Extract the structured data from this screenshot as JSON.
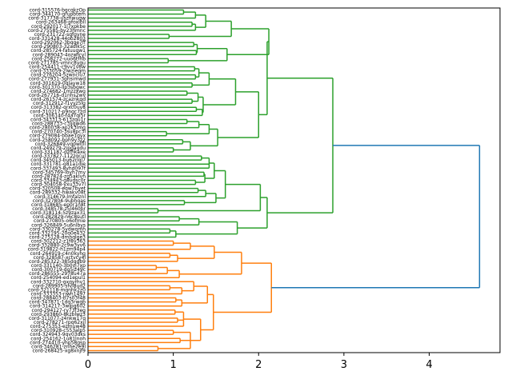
{
  "chart_data": {
    "type": "dendrogram",
    "orientation": "right",
    "xlabel": "",
    "ylabel": "",
    "xlim": [
      0,
      4.83
    ],
    "xticks": [
      0,
      1,
      2,
      3,
      4
    ],
    "colors": {
      "above_threshold": "#1f77b4",
      "cluster1": "#2ca02c",
      "cluster2": "#ff7f0e"
    },
    "leaves": [
      "cord-315576-bgcqkzOp",
      "cord-344170-grupbtem",
      "cord-317738-uszhwuqw",
      "cord-263468-pfoxlbll",
      "cord-292017-1l7xpkbe",
      "cord-275585-by23hmnc",
      "cord-231722-sqfgvne",
      "cord-331428-44ob2803",
      "cord-292062-3bqqe7ff",
      "cord-290803-32adlk5c",
      "cord-285724-fatuugw1",
      "cord-289043-4ozwfcyl",
      "cord-258272-uuo6tfhb",
      "cord-271785-vmnc8yqu",
      "cord-254411-c9vv1v8w",
      "cord-333059-2lwzieqm",
      "cord-276204-5zwnclu7",
      "cord-277931-3ghsimwd",
      "cord-301619-0qlayw18",
      "cord-301370-llp3sbgwc",
      "cord-274682-1mzzxwg",
      "cord-267716-d1nhs2wv",
      "cord-261574-zcaznkqd",
      "cord-312912-f1yyz5lg",
      "cord-313382-qrxc0uy8",
      "cord-310217-p9ngc7zd",
      "cord-306140-f4a7ql5r",
      "cord-343313-613zqu1r",
      "cord-288733-c3ljqwd6",
      "cord-280038-ap2k3lmg",
      "cord-270740-3su8pc3l",
      "cord-279084-bbae1gyx",
      "cord-258092-bph9y3z2",
      "cord-326849-vqpwlfll",
      "cord-249279-2ipgagdu",
      "cord-331187-dzfhkaxe",
      "cord-337827-112zqcul",
      "cord-345013-bu62nql7",
      "cord-331781-g81a1dje",
      "cord-337493-8yhd097f",
      "cord-345769-loyh7my",
      "cord-287824-zg5aklvn",
      "cord-334943-g8vdsc0r",
      "cord-304058-yxu33v7l",
      "cord-320508-eqw7byet",
      "cord-289332-hwakv08t",
      "cord-314679-lmfalznl",
      "cord-327804-9ubhqas",
      "cord-318685-ep0r1n8t",
      "cord-348578-z5l460br",
      "cord-318114-5z9zax31",
      "cord-282829-n6c8sutl",
      "cord-270805-o6ofmie",
      "cord-326849-5u6nlbys",
      "cord-330278-5ydwqmh",
      "cord-332195-20o0e432",
      "cord-275128-dmhqlge3",
      "cord-302212-z1f8v363",
      "cord-332880-2c9w3yv6",
      "cord-319822-h1zm94p4",
      "cord-264919-c4n0kyhg",
      "cord-328587-xctvcy4l",
      "cord-285322-385dgdb9",
      "cord-331140-3b0vj7xp",
      "cord-300719-dg5jz49c",
      "cord-286555-2978u47a",
      "cord-254094-ed1epul1",
      "cord-332710-gxqyrhv1",
      "cord-289905-sfvl8ud2",
      "cord-321118-mqnhk2z0",
      "cord-333353-rjwh1497",
      "cord-288403-b7s03f48",
      "cord-347871-1dq3rwqb",
      "cord-314217-3wlpg602",
      "cord-294127-ry73f3eg",
      "cord-293860-8kzblwz3",
      "cord-311077-z4nkw17q",
      "cord-278271-rpq62xjl",
      "cord-275353-ezmuw48",
      "cord-310928-c553alp5",
      "cord-324943-9qv03dks",
      "cord-254162-1u81lnoh",
      "cord-274410-yhp58gsp",
      "cord-346281-znhe2e9l",
      "cord-268425-xg8xnjf9"
    ],
    "tree": {
      "h": 4.59,
      "c": "#1f77b4",
      "k": [
        {
          "h": 2.87,
          "c": "#2ca02c",
          "k": [
            {
              "h": 2.1,
              "c": "#2ca02c",
              "k": [
                {
                  "h": 2.12,
                  "c": "#2ca02c",
                  "k": [
                    {
                      "h": 1.68,
                      "c": "#2ca02c",
                      "k": [
                        {
                          "h": 1.38,
                          "c": "#2ca02c",
                          "k": [
                            {
                              "h": 1.26,
                              "c": "#2ca02c",
                              "k": [
                                {
                                  "h": 1.12,
                                  "k": [
                                    0,
                                    1
                                  ]
                                },
                                2
                              ]
                            },
                            {
                              "h": 1.26,
                              "c": "#2ca02c",
                              "k": [
                                {
                                  "h": 1.22,
                                  "k": [
                                    3,
                                    4
                                  ]
                                },
                                5
                              ]
                            }
                          ]
                        },
                        {
                          "h": 0.95,
                          "k": [
                            6,
                            7
                          ]
                        }
                      ]
                    },
                    {
                      "h": 1.63,
                      "c": "#2ca02c",
                      "k": [
                        {
                          "h": 1.28,
                          "c": "#2ca02c",
                          "k": [
                            {
                              "h": 1.24,
                              "k": [
                                8,
                                9
                              ]
                            },
                            {
                              "h": 1.27,
                              "k": [
                                10,
                                11
                              ]
                            }
                          ]
                        },
                        {
                          "h": 0.94,
                          "k": [
                            12,
                            13
                          ]
                        }
                      ]
                    }
                  ]
                },
                {
                  "h": 2.0,
                  "c": "#2ca02c",
                  "k": [
                    {
                      "h": 1.73,
                      "c": "#2ca02c",
                      "k": [
                        {
                          "h": 1.42,
                          "c": "#2ca02c",
                          "k": [
                            {
                              "h": 1.3,
                              "c": "#2ca02c",
                              "k": [
                                {
                                  "h": 1.25,
                                  "k": [
                                    14,
                                    15
                                  ]
                                },
                                {
                                  "h": 1.26,
                                  "k": [
                                    16,
                                    17
                                  ]
                                }
                              ]
                            },
                            {
                              "h": 1.22,
                              "k": [
                                18,
                                19
                              ]
                            }
                          ]
                        },
                        {
                          "h": 1.35,
                          "c": "#2ca02c",
                          "k": [
                            {
                              "h": 1.29,
                              "c": "#2ca02c",
                              "k": [
                                {
                                  "h": 1.16,
                                  "k": [
                                    20,
                                    21
                                  ]
                                },
                                {
                                  "h": 1.22,
                                  "k": [
                                    22,
                                    23
                                  ]
                                }
                              ]
                            },
                            {
                              "h": 1.34,
                              "c": "#2ca02c",
                              "k": [
                                {
                                  "h": 1.27,
                                  "k": [
                                    24,
                                    25
                                  ]
                                },
                                26
                              ]
                            }
                          ]
                        }
                      ]
                    },
                    {
                      "h": 1.52,
                      "c": "#2ca02c",
                      "k": [
                        {
                          "h": 1.42,
                          "c": "#2ca02c",
                          "k": [
                            {
                              "h": 1.3,
                              "c": "#2ca02c",
                              "k": [
                                {
                                  "h": 1.16,
                                  "k": [
                                    27,
                                    28
                                  ]
                                },
                                29
                              ]
                            },
                            {
                              "h": 0.92,
                              "k": [
                                30,
                                31
                              ]
                            }
                          ]
                        },
                        {
                          "h": 1.2,
                          "c": "#2ca02c",
                          "k": [
                            {
                              "h": 1.11,
                              "k": [
                                32,
                                33
                              ]
                            },
                            {
                              "h": 1.0,
                              "k": [
                                34,
                                35
                              ]
                            }
                          ]
                        }
                      ]
                    }
                  ]
                }
              ]
            },
            {
              "h": 2.1,
              "c": "#2ca02c",
              "k": [
                {
                  "h": 2.02,
                  "c": "#2ca02c",
                  "k": [
                    {
                      "h": 1.61,
                      "c": "#2ca02c",
                      "k": [
                        {
                          "h": 1.48,
                          "c": "#2ca02c",
                          "k": [
                            {
                              "h": 1.42,
                              "c": "#2ca02c",
                              "k": [
                                {
                                  "h": 1.33,
                                  "k": [
                                    36,
                                    37
                                  ]
                                },
                                38,
                                39
                              ]
                            },
                            {
                              "h": 1.37,
                              "c": "#2ca02c",
                              "k": [
                                {
                                  "h": 1.36,
                                  "k": [
                                    40,
                                    41
                                  ]
                                },
                                {
                                  "h": 1.26,
                                  "k": [
                                    42,
                                    43
                                  ]
                                }
                              ]
                            }
                          ]
                        },
                        {
                          "h": 1.5,
                          "c": "#2ca02c",
                          "k": [
                            {
                              "h": 1.38,
                              "c": "#2ca02c",
                              "k": [
                                {
                                  "h": 1.29,
                                  "k": [
                                    44,
                                    45
                                  ]
                                },
                                46
                              ]
                            },
                            {
                              "h": 1.13,
                              "k": [
                                47,
                                48
                              ]
                            }
                          ]
                        }
                      ]
                    },
                    {
                      "h": 0.82,
                      "k": [
                        49,
                        50
                      ]
                    }
                  ]
                },
                {
                  "h": 1.75,
                  "c": "#2ca02c",
                  "k": [
                    {
                      "h": 1.3,
                      "c": "#2ca02c",
                      "k": [
                        {
                          "h": 1.07,
                          "k": [
                            51,
                            52
                          ]
                        },
                        53
                      ]
                    },
                    {
                      "h": 1.03,
                      "c": "#2ca02c",
                      "k": [
                        {
                          "h": 0.96,
                          "k": [
                            54,
                            55
                          ]
                        },
                        56
                      ]
                    }
                  ]
                }
              ]
            }
          ]
        },
        {
          "h": 2.15,
          "c": "#ff7f0e",
          "k": [
            {
              "h": 1.8,
              "c": "#ff7f0e",
              "k": [
                {
                  "h": 1.48,
                  "c": "#ff7f0e",
                  "k": [
                    {
                      "h": 1.2,
                      "c": "#ff7f0e",
                      "k": [
                        {
                          "h": 1.0,
                          "k": [
                            57,
                            58
                          ]
                        },
                        59
                      ]
                    },
                    {
                      "h": 1.05,
                      "c": "#ff7f0e",
                      "k": [
                        {
                          "h": 0.96,
                          "k": [
                            60,
                            61
                          ]
                        },
                        62
                      ]
                    }
                  ]
                },
                {
                  "h": 1.07,
                  "c": "#ff7f0e",
                  "k": [
                    {
                      "h": 0.93,
                      "k": [
                        {
                          "h": 0.8,
                          "k": [
                            63,
                            64
                          ]
                        },
                        65
                      ]
                    },
                    66
                  ]
                }
              ]
            },
            {
              "h": 1.47,
              "c": "#ff7f0e",
              "k": [
                {
                  "h": 1.4,
                  "c": "#ff7f0e",
                  "k": [
                    {
                      "h": 1.24,
                      "c": "#ff7f0e",
                      "k": [
                        67,
                        {
                          "h": 1.1,
                          "k": [
                            {
                              "h": 0.96,
                              "k": [
                                68,
                                69
                              ]
                            },
                            70
                          ]
                        }
                      ]
                    },
                    {
                      "h": 1.1,
                      "c": "#ff7f0e",
                      "k": [
                        {
                          "h": 1.03,
                          "k": [
                            71,
                            72
                          ]
                        },
                        73
                      ]
                    }
                  ]
                },
                {
                  "h": 1.32,
                  "c": "#ff7f0e",
                  "k": [
                    {
                      "h": 1.12,
                      "c": "#ff7f0e",
                      "k": [
                        {
                          "h": 1.02,
                          "k": [
                            74,
                            75
                          ]
                        },
                        {
                          "h": 1.05,
                          "k": [
                            76,
                            77
                          ]
                        },
                        78
                      ]
                    },
                    {
                      "h": 1.2,
                      "k": [
                        {
                          "h": 1.0,
                          "k": [
                            79,
                            80
                          ]
                        },
                        {
                          "h": 1.08,
                          "k": [
                            81,
                            82
                          ]
                        },
                        {
                          "h": 0.82,
                          "k": [
                            83,
                            84
                          ]
                        }
                      ]
                    }
                  ]
                }
              ]
            }
          ]
        }
      ]
    }
  }
}
